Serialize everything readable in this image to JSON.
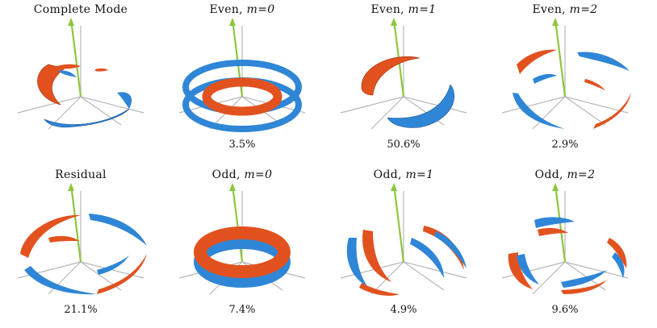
{
  "colors": {
    "red": "#e2521f",
    "blue": "#2f86d6",
    "axis": "#b8b8b8",
    "vector": "#8cc63f"
  },
  "panels": [
    {
      "id": "complete",
      "title": "Complete Mode",
      "mode_label": "",
      "percent": ""
    },
    {
      "id": "even0",
      "title": "Even, ",
      "mode_label": "m=0",
      "percent": "3.5%"
    },
    {
      "id": "even1",
      "title": "Even, ",
      "mode_label": "m=1",
      "percent": "50.6%"
    },
    {
      "id": "even2",
      "title": "Even, ",
      "mode_label": "m=2",
      "percent": "2.9%"
    },
    {
      "id": "residual",
      "title": "Residual",
      "mode_label": "",
      "percent": "21.1%"
    },
    {
      "id": "odd0",
      "title": "Odd, ",
      "mode_label": "m=0",
      "percent": "7.4%"
    },
    {
      "id": "odd1",
      "title": "Odd, ",
      "mode_label": "m=1",
      "percent": "4.9%"
    },
    {
      "id": "odd2",
      "title": "Odd, ",
      "mode_label": "m=2",
      "percent": "9.6%"
    }
  ]
}
